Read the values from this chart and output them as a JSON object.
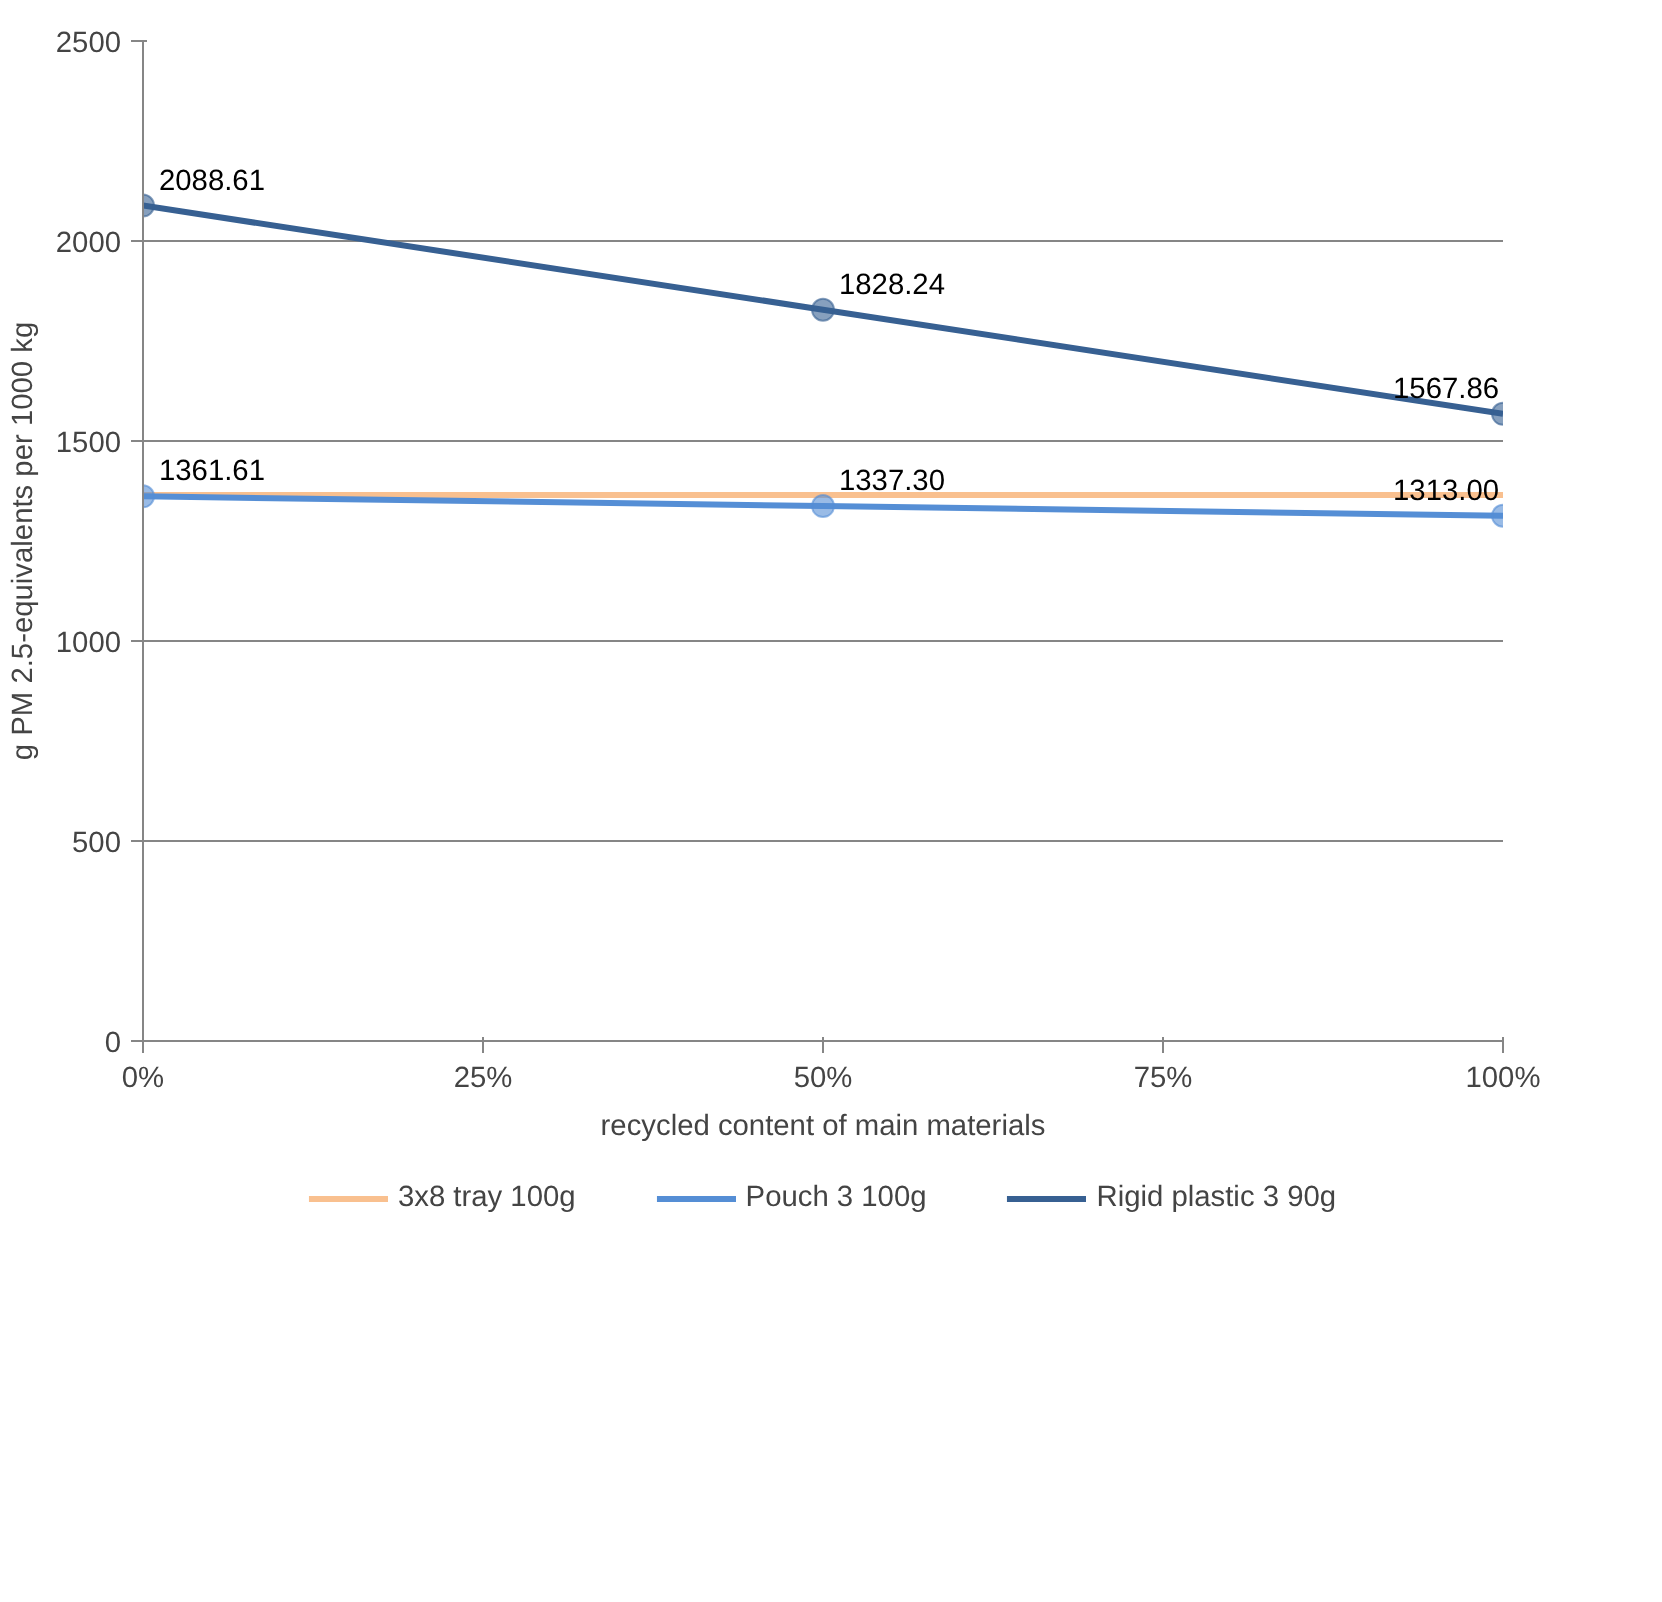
{
  "chart_data": {
    "type": "line",
    "xlabel": "recycled content of main materials",
    "ylabel": "g PM 2.5-equivalents per 1000 kg",
    "x": [
      0,
      50,
      100
    ],
    "xlim": [
      0,
      100
    ],
    "xticks": [
      {
        "value": 0,
        "label": "0%"
      },
      {
        "value": 25,
        "label": "25%"
      },
      {
        "value": 50,
        "label": "50%"
      },
      {
        "value": 75,
        "label": "75%"
      },
      {
        "value": 100,
        "label": "100%"
      }
    ],
    "ylim": [
      0,
      2500
    ],
    "yticks": [
      0,
      500,
      1000,
      1500,
      2000,
      2500
    ],
    "grid": "y",
    "legend": "bottom",
    "series": [
      {
        "name": "3x8 tray 100g",
        "color": "#f9c08f",
        "values": [
          1365,
          1365,
          1365
        ],
        "marker": "none"
      },
      {
        "name": "Pouch 3 100g",
        "color": "#558ed5",
        "values": [
          1361.61,
          1337.3,
          1313.0
        ],
        "marker": "circle",
        "value_labels": [
          "1361.61",
          "1337.30",
          "1313.00"
        ]
      },
      {
        "name": "Rigid plastic 3 90g",
        "color": "#376092",
        "values": [
          2088.61,
          1828.24,
          1567.86
        ],
        "marker": "circle",
        "value_labels": [
          "2088.61",
          "1828.24",
          "1567.86"
        ]
      }
    ]
  }
}
